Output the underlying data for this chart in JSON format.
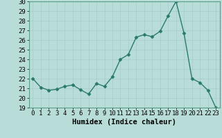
{
  "x": [
    0,
    1,
    2,
    3,
    4,
    5,
    6,
    7,
    8,
    9,
    10,
    11,
    12,
    13,
    14,
    15,
    16,
    17,
    18,
    19,
    20,
    21,
    22,
    23
  ],
  "y": [
    22,
    21.1,
    20.8,
    20.9,
    21.2,
    21.35,
    20.85,
    20.4,
    21.5,
    21.2,
    22.2,
    24.0,
    24.5,
    26.3,
    26.55,
    26.35,
    26.9,
    28.5,
    30.0,
    26.7,
    22.0,
    21.6,
    20.8,
    19.0
  ],
  "line_color": "#2a7a6a",
  "marker": "D",
  "marker_size": 2.5,
  "bg_color": "#b8ddd8",
  "grid_color": "#a8cdc8",
  "xlabel": "Humidex (Indice chaleur)",
  "xlim": [
    -0.5,
    23.5
  ],
  "ylim": [
    19,
    30
  ],
  "yticks": [
    19,
    20,
    21,
    22,
    23,
    24,
    25,
    26,
    27,
    28,
    29,
    30
  ],
  "xticks": [
    0,
    1,
    2,
    3,
    4,
    5,
    6,
    7,
    8,
    9,
    10,
    11,
    12,
    13,
    14,
    15,
    16,
    17,
    18,
    19,
    20,
    21,
    22,
    23
  ],
  "tick_fontsize": 6.5,
  "xlabel_fontsize": 7.5,
  "line_width": 1.0
}
